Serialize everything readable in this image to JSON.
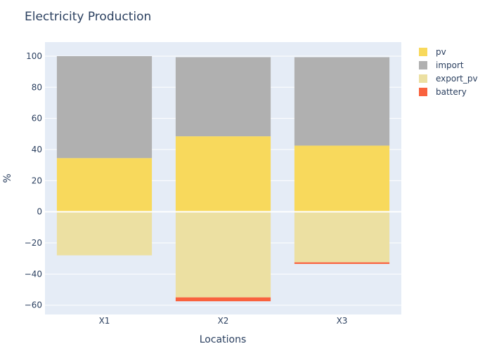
{
  "chart_data": {
    "type": "bar",
    "barmode": "relative",
    "title": "Electricity Production",
    "xlabel": "Locations",
    "ylabel": "%",
    "categories": [
      "X1",
      "X2",
      "X3"
    ],
    "ylim": [
      -66,
      109
    ],
    "yticks": [
      100,
      80,
      60,
      40,
      20,
      0,
      -20,
      -40,
      -60
    ],
    "ytick_labels": [
      "100",
      "80",
      "60",
      "40",
      "20",
      "0",
      "−20",
      "−40",
      "−60"
    ],
    "grid": true,
    "legend_position": "top-right",
    "series": [
      {
        "name": "pv",
        "color": "#f8d95c",
        "values": [
          34.5,
          48.5,
          42.5
        ]
      },
      {
        "name": "import",
        "color": "#b0b0b0",
        "values": [
          65.5,
          50.8,
          56.8
        ]
      },
      {
        "name": "export_pv",
        "color": "#ece0a2",
        "values": [
          -28,
          -55,
          -32.5
        ]
      },
      {
        "name": "battery",
        "color": "#f9623e",
        "values": [
          0,
          -2.5,
          -1
        ]
      }
    ]
  }
}
